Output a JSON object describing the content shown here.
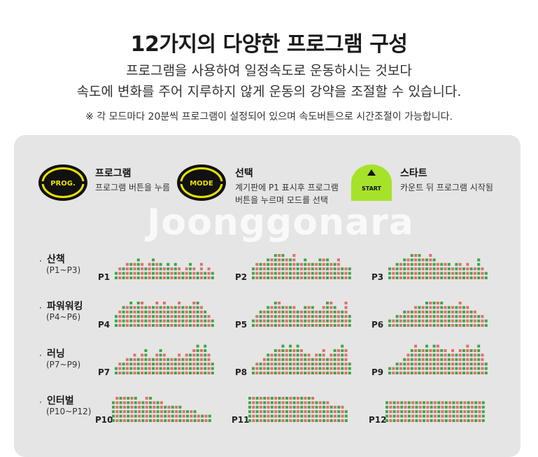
{
  "header": {
    "title": "12가지의 다양한 프로그램 구성",
    "line1": "프로그램을 사용하여 일정속도로 운동하시는 것보다",
    "line2": "속도에 변화를 주어 지루하지 않게 운동의 강약을 조절할 수 있습니다.",
    "note": "※ 각 모드마다 20분씩 프로그램이 설정되어 있으며 속도버튼으로 시간조절이 가능합니다."
  },
  "controls": [
    {
      "button_text": "PROG.",
      "title": "프로그램",
      "desc1": "프로그램 버튼을 누름",
      "desc2": "",
      "icon": "prog-button-icon"
    },
    {
      "button_text": "MODE",
      "title": "선택",
      "desc1": "계기판에 P1 표시후 프로그램",
      "desc2": "버튼을 누르며 모드를 선택",
      "icon": "mode-button-icon"
    },
    {
      "button_text": "START",
      "title": "스타트",
      "desc1": "카운트 뒤 프로그램 시작됨",
      "desc2": "",
      "icon": "start-button-icon"
    }
  ],
  "watermark": "Joonggonara",
  "colors": {
    "bar_green": "#3aa845",
    "bar_red": "#e46c6c",
    "button_yellow": "#e8e100",
    "start_green": "#a6e22a",
    "panel_bg": "#e5e5e5"
  },
  "categories": [
    {
      "name": "산책",
      "range": "(P1~P3)"
    },
    {
      "name": "파워워킹",
      "range": "(P4~P6)"
    },
    {
      "name": "러닝",
      "range": "(P7~P9)"
    },
    {
      "name": "인터벌",
      "range": "(P10~P12)"
    }
  ],
  "programs": [
    {
      "label": "P1",
      "levels": [
        2,
        3,
        3,
        4,
        4,
        4,
        5,
        4,
        3,
        4,
        5,
        4,
        4,
        3,
        4,
        3,
        4,
        3,
        2,
        3,
        4,
        3,
        2,
        4,
        2,
        3,
        2
      ]
    },
    {
      "label": "P2",
      "levels": [
        3,
        4,
        4,
        4,
        5,
        5,
        6,
        6,
        6,
        5,
        5,
        6,
        4,
        4,
        5,
        4,
        4,
        4,
        5,
        5,
        5,
        4,
        4,
        5,
        3,
        3,
        3
      ]
    },
    {
      "label": "P3",
      "levels": [
        3,
        3,
        4,
        4,
        5,
        5,
        6,
        6,
        6,
        5,
        5,
        6,
        5,
        4,
        4,
        4,
        4,
        3,
        4,
        4,
        3,
        4,
        3,
        3,
        5,
        3,
        2
      ]
    },
    {
      "label": "P4",
      "levels": [
        3,
        4,
        5,
        5,
        6,
        5,
        6,
        6,
        5,
        5,
        5,
        6,
        5,
        6,
        5,
        5,
        5,
        6,
        5,
        5,
        5,
        6,
        6,
        5,
        4,
        3,
        2
      ]
    },
    {
      "label": "P5",
      "levels": [
        2,
        3,
        4,
        4,
        5,
        5,
        6,
        6,
        5,
        5,
        5,
        5,
        4,
        4,
        5,
        5,
        5,
        4,
        4,
        5,
        6,
        6,
        5,
        4,
        4,
        6,
        3
      ]
    },
    {
      "label": "P6",
      "levels": [
        2,
        2,
        3,
        3,
        4,
        4,
        4,
        5,
        5,
        5,
        6,
        6,
        6,
        6,
        6,
        5,
        5,
        5,
        5,
        6,
        5,
        5,
        4,
        4,
        3,
        3,
        2
      ]
    },
    {
      "label": "P7",
      "levels": [
        2,
        3,
        3,
        4,
        4,
        5,
        4,
        5,
        6,
        4,
        4,
        5,
        6,
        5,
        4,
        4,
        4,
        5,
        4,
        5,
        5,
        6,
        7,
        6,
        7,
        5,
        3
      ]
    },
    {
      "label": "P8",
      "levels": [
        2,
        3,
        3,
        4,
        5,
        5,
        6,
        6,
        7,
        6,
        7,
        6,
        7,
        6,
        5,
        5,
        4,
        5,
        5,
        6,
        4,
        5,
        6,
        6,
        7,
        6,
        3
      ]
    },
    {
      "label": "P9",
      "levels": [
        2,
        2,
        3,
        3,
        4,
        5,
        6,
        7,
        6,
        6,
        7,
        6,
        7,
        7,
        6,
        6,
        5,
        6,
        5,
        6,
        6,
        7,
        6,
        6,
        7,
        5,
        3
      ]
    },
    {
      "label": "P10",
      "levels": [
        5,
        6,
        6,
        6,
        6,
        6,
        6,
        5,
        5,
        6,
        6,
        5,
        5,
        5,
        4,
        4,
        4,
        4,
        4,
        3,
        3,
        3,
        3,
        2,
        2,
        2,
        2
      ]
    },
    {
      "label": "P11",
      "levels": [
        6,
        6,
        6,
        6,
        6,
        6,
        6,
        6,
        6,
        6,
        6,
        6,
        6,
        6,
        6,
        6,
        6,
        6,
        5,
        5,
        5,
        5,
        4,
        4,
        4,
        4,
        3
      ]
    },
    {
      "label": "P12",
      "levels": [
        5,
        5,
        5,
        5,
        5,
        5,
        5,
        5,
        5,
        5,
        5,
        5,
        5,
        5,
        5,
        5,
        5,
        5,
        5,
        5,
        5,
        5,
        5,
        5,
        5,
        5,
        5
      ]
    }
  ]
}
